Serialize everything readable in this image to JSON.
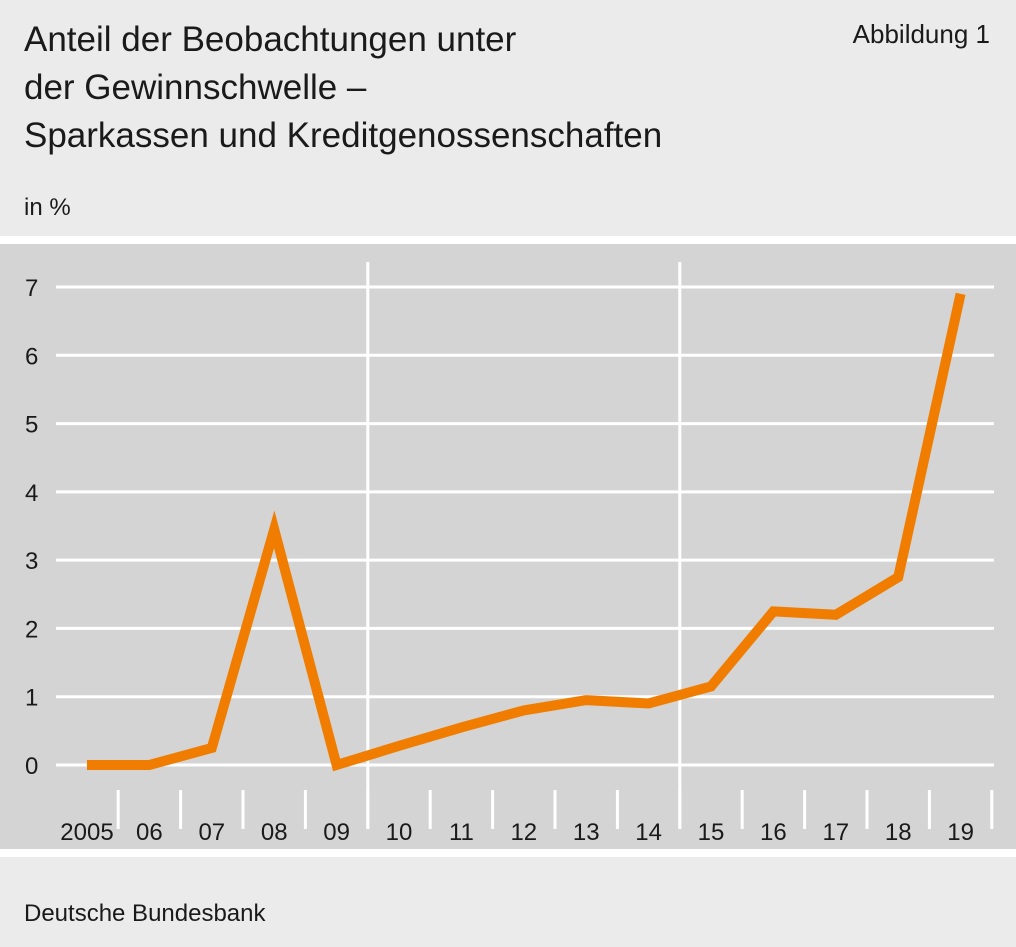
{
  "figure": {
    "label": "Abbildung 1",
    "title_lines": [
      "Anteil der Beobachtungen unter",
      "der Gewinnschwelle –",
      "Sparkassen und Kreditgenossenschaften"
    ],
    "unit": "in %",
    "source": "Deutsche Bundesbank"
  },
  "colors": {
    "line": "#f07d00",
    "plot_background": "#d4d4d4",
    "gridlines": "#ffffff",
    "page_background": "#ebebeb"
  },
  "chart_data": {
    "type": "line",
    "title": "Anteil der Beobachtungen unter der Gewinnschwelle – Sparkassen und Kreditgenossenschaften",
    "ylabel": "in %",
    "xlabel": "",
    "categories": [
      "2005",
      "06",
      "07",
      "08",
      "09",
      "10",
      "11",
      "12",
      "13",
      "14",
      "15",
      "16",
      "17",
      "18",
      "19"
    ],
    "series": [
      {
        "values": [
          0,
          0,
          0.25,
          3.45,
          0,
          0.28,
          0.55,
          0.8,
          0.95,
          0.9,
          1.15,
          2.25,
          2.2,
          2.75,
          6.9
        ]
      }
    ],
    "ylim": [
      0,
      7
    ],
    "yticks": [
      0,
      1,
      2,
      3,
      4,
      5,
      6,
      7
    ],
    "grid": true,
    "vertical_reference_lines_after": [
      "09",
      "14"
    ],
    "legend": "none"
  }
}
